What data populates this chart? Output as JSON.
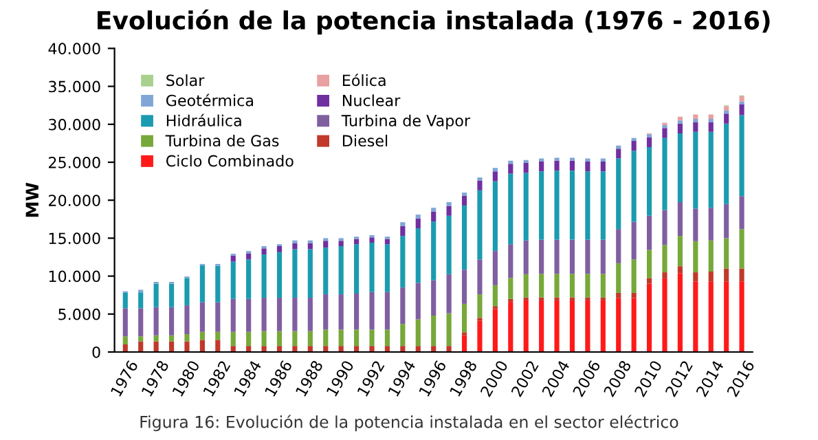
{
  "chart_data": {
    "type": "bar",
    "stacked": true,
    "title": "Evolución de la potencia instalada (1976 - 2016)",
    "ylabel": "MW",
    "categories": [
      "1976",
      null,
      "1978",
      null,
      "1980",
      null,
      "1982",
      null,
      "1984",
      null,
      "1986",
      null,
      "1988",
      null,
      "1990",
      null,
      "1992",
      null,
      "1994",
      null,
      "1996",
      null,
      "1998",
      null,
      "2000",
      null,
      "2002",
      null,
      "2004",
      null,
      "2006",
      null,
      "2008",
      null,
      "2010",
      null,
      "2012",
      null,
      "2014",
      null,
      "2016"
    ],
    "series": [
      {
        "name": "Ciclo Combinado",
        "color": "#ff1a1a",
        "values": [
          0,
          0,
          0,
          0,
          0,
          0,
          0,
          0,
          0,
          0,
          0,
          0,
          0,
          0,
          0,
          0,
          0,
          0,
          0,
          0,
          0,
          0,
          2200,
          4100,
          5650,
          6600,
          6800,
          6800,
          6800,
          6800,
          6800,
          6800,
          7100,
          7100,
          9000,
          9700,
          10400,
          9300,
          9300,
          9300,
          9300
        ]
      },
      {
        "name": "Diesel",
        "color": "#c0392b",
        "values": [
          1000,
          1400,
          1400,
          1400,
          1400,
          1600,
          1600,
          800,
          800,
          800,
          800,
          800,
          800,
          800,
          800,
          800,
          800,
          800,
          800,
          800,
          800,
          800,
          400,
          400,
          400,
          400,
          400,
          400,
          400,
          400,
          400,
          400,
          700,
          700,
          750,
          800,
          900,
          1200,
          1300,
          1700,
          1700
        ]
      },
      {
        "name": "Turbina de Gas",
        "color": "#77a83a",
        "values": [
          1050,
          650,
          800,
          800,
          950,
          1050,
          1050,
          1850,
          1850,
          1950,
          1950,
          1950,
          1950,
          2150,
          2150,
          2150,
          2150,
          2150,
          2900,
          3500,
          4000,
          4300,
          3750,
          3100,
          2750,
          2750,
          3050,
          3100,
          3100,
          3100,
          3100,
          3100,
          3900,
          4400,
          3700,
          3600,
          4000,
          4100,
          4100,
          4000,
          5200
        ]
      },
      {
        "name": "Turbina de Vapor",
        "color": "#7f5fa0",
        "values": [
          3700,
          3700,
          3700,
          3700,
          3800,
          3900,
          3900,
          4350,
          4350,
          4400,
          4400,
          4400,
          4400,
          4650,
          4650,
          4750,
          4950,
          4950,
          4800,
          4800,
          4650,
          5150,
          4500,
          4600,
          4500,
          4450,
          4450,
          4500,
          4500,
          4500,
          4500,
          4500,
          4500,
          4950,
          4500,
          4600,
          4450,
          4300,
          4300,
          4500,
          4350
        ]
      },
      {
        "name": "Hidráulica",
        "color": "#1b9bb0",
        "values": [
          2050,
          2100,
          3100,
          3100,
          3600,
          4900,
          4800,
          4900,
          5200,
          5700,
          6000,
          6400,
          6400,
          6150,
          6350,
          6500,
          6500,
          6300,
          6800,
          7200,
          7750,
          7700,
          8450,
          9100,
          9200,
          9300,
          8900,
          9000,
          9100,
          9100,
          9000,
          9000,
          9300,
          9350,
          9050,
          9500,
          9050,
          10100,
          10000,
          10600,
          10650
        ]
      },
      {
        "name": "Nuclear",
        "color": "#7030a0",
        "values": [
          0,
          0,
          0,
          0,
          0,
          0,
          0,
          800,
          800,
          800,
          800,
          800,
          800,
          900,
          700,
          700,
          700,
          700,
          1300,
          1300,
          1300,
          1300,
          1300,
          1300,
          1300,
          1300,
          1300,
          1300,
          1300,
          1300,
          1300,
          1300,
          1300,
          1300,
          1300,
          1300,
          1300,
          1300,
          1300,
          1300,
          1400
        ]
      },
      {
        "name": "Geotérmica",
        "color": "#7fa6d6",
        "values": [
          200,
          350,
          250,
          250,
          200,
          150,
          250,
          250,
          300,
          300,
          250,
          350,
          350,
          350,
          350,
          300,
          300,
          300,
          500,
          500,
          500,
          500,
          400,
          400,
          450,
          400,
          400,
          400,
          400,
          400,
          400,
          400,
          400,
          400,
          400,
          400,
          400,
          400,
          400,
          400,
          400
        ]
      },
      {
        "name": "Eólica",
        "color": "#e8a0a0",
        "values": [
          0,
          0,
          0,
          0,
          0,
          0,
          0,
          0,
          0,
          0,
          0,
          0,
          0,
          0,
          0,
          0,
          0,
          0,
          0,
          0,
          0,
          0,
          0,
          0,
          0,
          0,
          0,
          0,
          0,
          0,
          0,
          0,
          0,
          0,
          100,
          300,
          500,
          600,
          600,
          600,
          700
        ]
      },
      {
        "name": "Solar",
        "color": "#a9d18e",
        "values": [
          0,
          0,
          0,
          0,
          0,
          0,
          0,
          0,
          0,
          0,
          0,
          0,
          0,
          0,
          0,
          0,
          0,
          0,
          0,
          0,
          0,
          0,
          0,
          0,
          0,
          0,
          0,
          0,
          0,
          0,
          0,
          0,
          0,
          0,
          0,
          0,
          0,
          0,
          0,
          100,
          100
        ]
      }
    ],
    "ylim": [
      0,
      40000
    ],
    "yticks": [
      {
        "value": 0,
        "label": "0"
      },
      {
        "value": 5000,
        "label": "5.000"
      },
      {
        "value": 10000,
        "label": "10.000"
      },
      {
        "value": 15000,
        "label": "15.000"
      },
      {
        "value": 20000,
        "label": "20.000"
      },
      {
        "value": 25000,
        "label": "25.000"
      },
      {
        "value": 30000,
        "label": "30.000"
      },
      {
        "value": 35000,
        "label": "35.000"
      },
      {
        "value": 40000,
        "label": "40.000"
      }
    ],
    "grid": false,
    "legend": "top left",
    "annotations": [
      "Figura 16: Evolución de la potencia instalada en el sector eléctrico"
    ]
  }
}
